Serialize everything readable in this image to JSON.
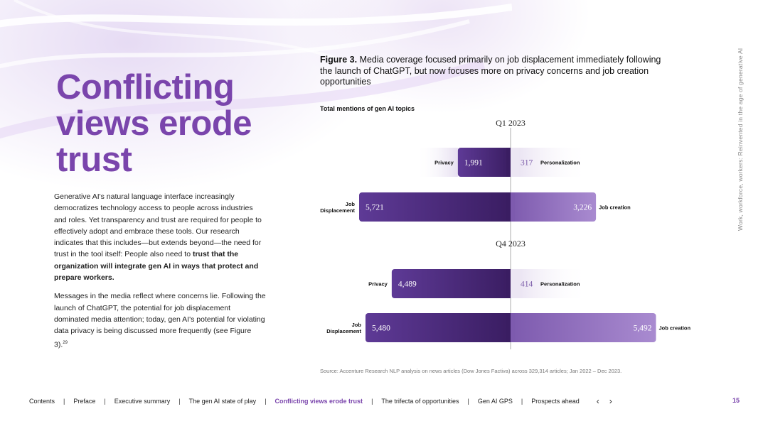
{
  "heading": {
    "line1": "Conflicting",
    "line2": "views erode",
    "line3": "trust"
  },
  "body": {
    "p1_a": "Generative AI's natural language interface increasingly democratizes technology access to people across industries and roles. Yet transparency and trust are required for people to effectively adopt and embrace these tools. Our research indicates that this includes—but extends beyond—the need for trust in the tool itself: People also need to ",
    "p1_b": "trust that the organization will integrate gen AI in ways that protect and prepare workers.",
    "p2": "Messages in the media reflect where concerns lie. Following the launch of ChatGPT, the potential for job displacement dominated media attention; today, gen AI's potential for violating data privacy is being discussed more frequently (see Figure 3).",
    "p2_sup": "29"
  },
  "figure": {
    "label": "Figure 3.",
    "caption": " Media coverage focused primarily on job displacement immediately following the launch of ChatGPT, but now focuses more on privacy concerns and job creation opportunities",
    "subtitle": "Total mentions of gen AI topics"
  },
  "chart_data": {
    "type": "bar",
    "title": "Total mentions of gen AI topics",
    "panels": [
      {
        "period": "Q1 2023",
        "rows": [
          {
            "left_label": "Privacy",
            "left_value": 1991,
            "left_text": "1,991",
            "right_label": "Personalization",
            "right_value": 317,
            "right_text": "317"
          },
          {
            "left_label": "Job Displacement",
            "left_value": 5721,
            "left_text": "5,721",
            "right_label": "Job creation",
            "right_value": 3226,
            "right_text": "3,226"
          }
        ]
      },
      {
        "period": "Q4 2023",
        "rows": [
          {
            "left_label": "Privacy",
            "left_value": 4489,
            "left_text": "4,489",
            "right_label": "Personalization",
            "right_value": 414,
            "right_text": "414"
          },
          {
            "left_label": "Job Displacement",
            "left_value": 5480,
            "left_text": "5,480",
            "right_label": "Job creation",
            "right_value": 5492,
            "right_text": "5,492"
          }
        ]
      }
    ],
    "colors": {
      "left_dark": "#3d1f66",
      "left_mid": "#5a3690",
      "right_strong": "#9a78c4",
      "right_light": "#c9b5e0"
    }
  },
  "source": "Source: Accenture Research NLP analysis on news articles (Dow Jones Factiva) across 329,314 articles; Jan 2022 – Dec 2023.",
  "side_text": "Work, workforce, workers: Reinvented in the age of generative AI",
  "footer": {
    "items": [
      "Contents",
      "Preface",
      "Executive summary",
      "The gen AI state of play",
      "Conflicting views erode trust",
      "The trifecta of opportunities",
      "Gen AI GPS",
      "Prospects ahead"
    ],
    "active_index": 4,
    "prev_icon": "chevron-left-icon",
    "next_icon": "chevron-right-icon",
    "prev_glyph": "‹",
    "next_glyph": "›",
    "page_number": "15"
  }
}
